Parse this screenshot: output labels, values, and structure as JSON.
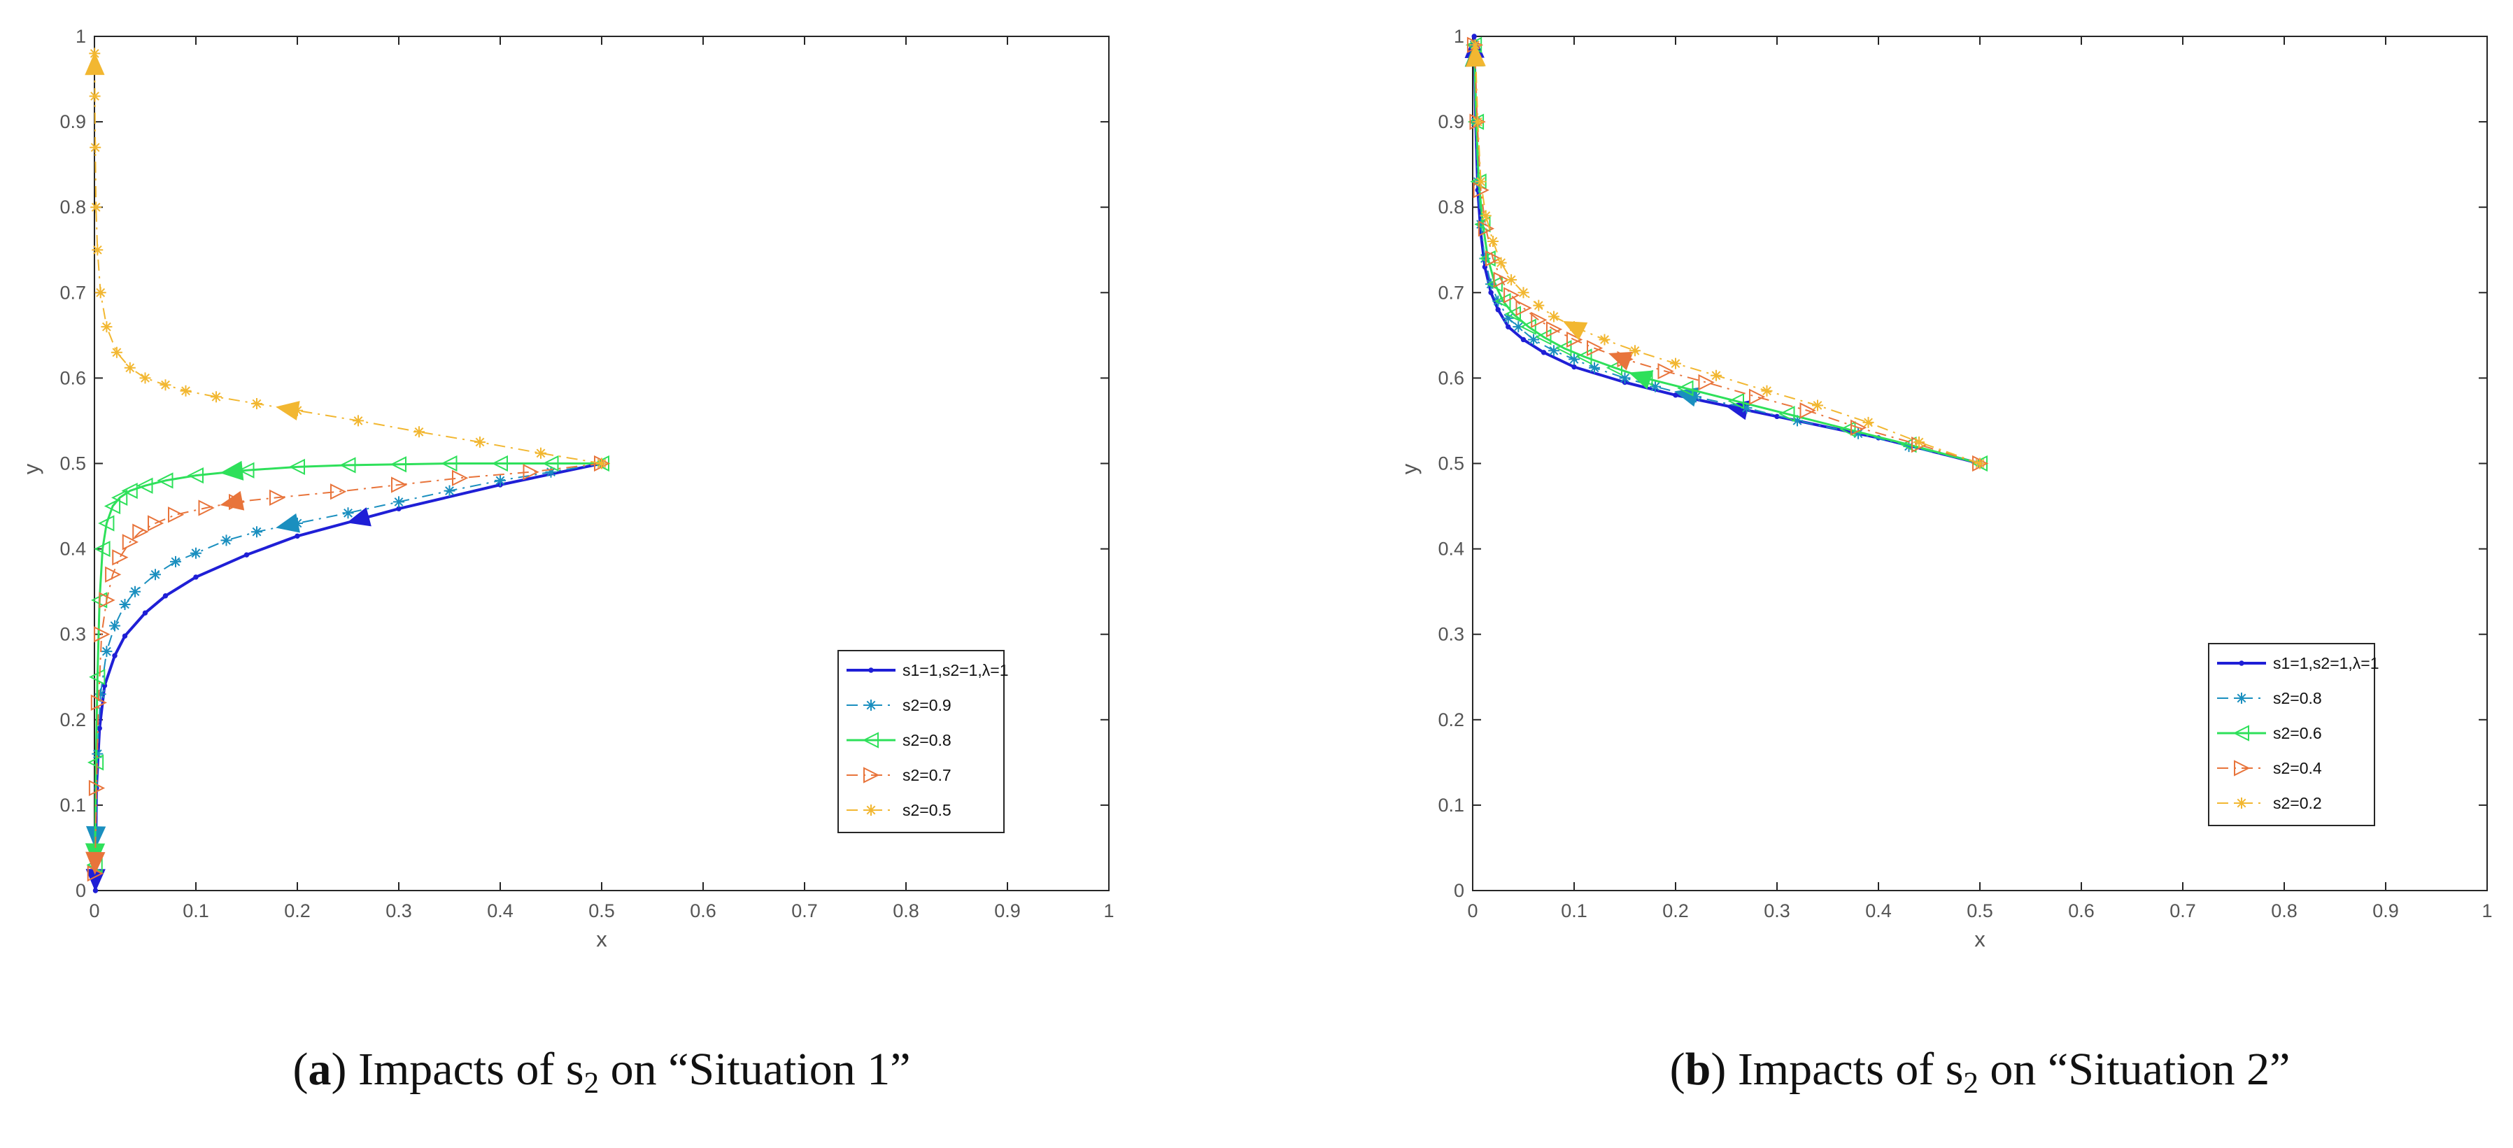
{
  "chart_data": [
    {
      "type": "line",
      "panel_label": "a",
      "caption": {
        "pre": "(",
        "bold": "a",
        "post": ") Impacts of s",
        "sub": "2",
        "end": " on “Situation 1”"
      },
      "xlabel": "x",
      "ylabel": "y",
      "xlim": [
        0,
        1
      ],
      "ylim": [
        0,
        1
      ],
      "xticks": [
        "0",
        "0.1",
        "0.2",
        "0.3",
        "0.4",
        "0.5",
        "0.6",
        "0.7",
        "0.8",
        "0.9",
        "1"
      ],
      "yticks": [
        "0",
        "0.1",
        "0.2",
        "0.3",
        "0.4",
        "0.5",
        "0.6",
        "0.7",
        "0.8",
        "0.9",
        "1"
      ],
      "legend_position": "bottom-right",
      "series": [
        {
          "name": "s1=1,s2=1,λ=1",
          "color": "#1f1fd6",
          "line": "solid",
          "marker": "dot",
          "width": 4,
          "x": [
            0.5,
            0.4,
            0.3,
            0.2,
            0.15,
            0.1,
            0.07,
            0.05,
            0.03,
            0.02,
            0.01,
            0.005,
            0.002,
            0.001
          ],
          "y": [
            0.5,
            0.475,
            0.447,
            0.415,
            0.393,
            0.367,
            0.345,
            0.325,
            0.298,
            0.275,
            0.24,
            0.19,
            0.12,
            0.0
          ],
          "arrow_at": 3
        },
        {
          "name": "s2=0.9",
          "color": "#1a8fbf",
          "line": "dashdot",
          "marker": "star",
          "width": 2,
          "x": [
            0.5,
            0.45,
            0.4,
            0.35,
            0.3,
            0.25,
            0.2,
            0.16,
            0.13,
            0.1,
            0.08,
            0.06,
            0.04,
            0.03,
            0.02,
            0.012,
            0.006,
            0.003,
            0.001
          ],
          "y": [
            0.5,
            0.49,
            0.48,
            0.468,
            0.455,
            0.442,
            0.43,
            0.42,
            0.41,
            0.395,
            0.385,
            0.37,
            0.35,
            0.335,
            0.31,
            0.28,
            0.23,
            0.16,
            0.05
          ],
          "arrow_at": 7
        },
        {
          "name": "s2=0.8",
          "color": "#2ee05a",
          "line": "solid",
          "marker": "triangle-left",
          "width": 3,
          "x": [
            0.5,
            0.45,
            0.4,
            0.35,
            0.3,
            0.25,
            0.2,
            0.15,
            0.1,
            0.07,
            0.05,
            0.035,
            0.025,
            0.018,
            0.012,
            0.008,
            0.005,
            0.003,
            0.0015,
            0.0005
          ],
          "y": [
            0.5,
            0.5,
            0.5,
            0.5,
            0.499,
            0.498,
            0.496,
            0.492,
            0.486,
            0.48,
            0.474,
            0.468,
            0.46,
            0.45,
            0.43,
            0.4,
            0.34,
            0.25,
            0.15,
            0.03
          ],
          "arrow_at": 8
        },
        {
          "name": "s2=0.7",
          "color": "#e8743b",
          "line": "dashdot",
          "marker": "triangle-right",
          "width": 2,
          "x": [
            0.5,
            0.43,
            0.36,
            0.3,
            0.24,
            0.18,
            0.14,
            0.11,
            0.08,
            0.06,
            0.045,
            0.035,
            0.025,
            0.018,
            0.012,
            0.007,
            0.004,
            0.002,
            0.0005
          ],
          "y": [
            0.5,
            0.49,
            0.483,
            0.475,
            0.467,
            0.46,
            0.455,
            0.448,
            0.44,
            0.43,
            0.42,
            0.408,
            0.39,
            0.37,
            0.34,
            0.3,
            0.22,
            0.12,
            0.02
          ],
          "arrow_at": 7
        },
        {
          "name": "s2=0.5",
          "color": "#f2b731",
          "line": "dashdot",
          "marker": "star",
          "width": 2,
          "x": [
            0.5,
            0.44,
            0.38,
            0.32,
            0.26,
            0.2,
            0.16,
            0.12,
            0.09,
            0.07,
            0.05,
            0.035,
            0.022,
            0.012,
            0.006,
            0.003,
            0.0015,
            0.0008,
            0.0004,
            0.0002
          ],
          "y": [
            0.5,
            0.512,
            0.525,
            0.537,
            0.55,
            0.562,
            0.57,
            0.578,
            0.585,
            0.592,
            0.6,
            0.612,
            0.63,
            0.66,
            0.7,
            0.75,
            0.8,
            0.87,
            0.93,
            0.98
          ],
          "arrow_at": 6
        }
      ]
    },
    {
      "type": "line",
      "panel_label": "b",
      "caption": {
        "pre": "(",
        "bold": "b",
        "post": ") Impacts of s",
        "sub": "2",
        "end": " on “Situation 2”"
      },
      "xlabel": "x",
      "ylabel": "y",
      "xlim": [
        0,
        1
      ],
      "ylim": [
        0,
        1
      ],
      "xticks": [
        "0",
        "0.1",
        "0.2",
        "0.3",
        "0.4",
        "0.5",
        "0.6",
        "0.7",
        "0.8",
        "0.9",
        "1"
      ],
      "yticks": [
        "0",
        "0.1",
        "0.2",
        "0.3",
        "0.4",
        "0.5",
        "0.6",
        "0.7",
        "0.8",
        "0.9",
        "1"
      ],
      "legend_position": "bottom-right",
      "series": [
        {
          "name": "s1=1,s2=1,λ=1",
          "color": "#1f1fd6",
          "line": "solid",
          "marker": "dot",
          "width": 4,
          "x": [
            0.5,
            0.4,
            0.3,
            0.2,
            0.15,
            0.1,
            0.07,
            0.05,
            0.035,
            0.025,
            0.018,
            0.012,
            0.008,
            0.005,
            0.003,
            0.0015
          ],
          "y": [
            0.5,
            0.53,
            0.555,
            0.58,
            0.595,
            0.613,
            0.63,
            0.645,
            0.66,
            0.68,
            0.7,
            0.73,
            0.77,
            0.82,
            0.9,
            1.0
          ],
          "arrow_at": 3
        },
        {
          "name": "s2=0.8",
          "color": "#1a8fbf",
          "line": "dashdot",
          "marker": "star",
          "width": 2,
          "x": [
            0.5,
            0.43,
            0.38,
            0.32,
            0.27,
            0.22,
            0.18,
            0.15,
            0.12,
            0.1,
            0.08,
            0.06,
            0.045,
            0.035,
            0.025,
            0.018,
            0.012,
            0.008,
            0.005,
            0.003,
            0.0015
          ],
          "y": [
            0.5,
            0.52,
            0.535,
            0.55,
            0.565,
            0.578,
            0.59,
            0.6,
            0.612,
            0.622,
            0.632,
            0.645,
            0.66,
            0.67,
            0.69,
            0.71,
            0.74,
            0.78,
            0.83,
            0.9,
            0.99
          ],
          "arrow_at": 6
        },
        {
          "name": "s2=0.6",
          "color": "#2ee05a",
          "line": "solid",
          "marker": "triangle-left",
          "width": 3,
          "x": [
            0.5,
            0.43,
            0.37,
            0.31,
            0.26,
            0.21,
            0.17,
            0.14,
            0.11,
            0.09,
            0.07,
            0.055,
            0.04,
            0.03,
            0.022,
            0.015,
            0.01,
            0.006,
            0.0035,
            0.0015
          ],
          "y": [
            0.5,
            0.522,
            0.54,
            0.558,
            0.573,
            0.588,
            0.6,
            0.612,
            0.625,
            0.635,
            0.648,
            0.66,
            0.675,
            0.69,
            0.71,
            0.74,
            0.78,
            0.83,
            0.9,
            0.99
          ],
          "arrow_at": 7
        },
        {
          "name": "s2=0.4",
          "color": "#e8743b",
          "line": "dashdot",
          "marker": "triangle-right",
          "width": 2,
          "x": [
            0.5,
            0.44,
            0.38,
            0.33,
            0.28,
            0.23,
            0.19,
            0.15,
            0.12,
            0.1,
            0.08,
            0.065,
            0.05,
            0.038,
            0.028,
            0.02,
            0.013,
            0.008,
            0.0045,
            0.002
          ],
          "y": [
            0.5,
            0.522,
            0.542,
            0.562,
            0.578,
            0.595,
            0.608,
            0.622,
            0.635,
            0.645,
            0.657,
            0.668,
            0.682,
            0.697,
            0.715,
            0.74,
            0.775,
            0.82,
            0.9,
            0.99
          ],
          "arrow_at": 8
        },
        {
          "name": "s2=0.2",
          "color": "#f2b731",
          "line": "dashdot",
          "marker": "star",
          "width": 2,
          "x": [
            0.5,
            0.44,
            0.39,
            0.34,
            0.29,
            0.24,
            0.2,
            0.16,
            0.13,
            0.1,
            0.08,
            0.065,
            0.05,
            0.038,
            0.028,
            0.02,
            0.013,
            0.008,
            0.005,
            0.0025
          ],
          "y": [
            0.5,
            0.525,
            0.548,
            0.568,
            0.585,
            0.603,
            0.617,
            0.632,
            0.645,
            0.66,
            0.672,
            0.685,
            0.7,
            0.715,
            0.735,
            0.76,
            0.79,
            0.83,
            0.9,
            0.99
          ],
          "arrow_at": 10
        }
      ]
    }
  ]
}
